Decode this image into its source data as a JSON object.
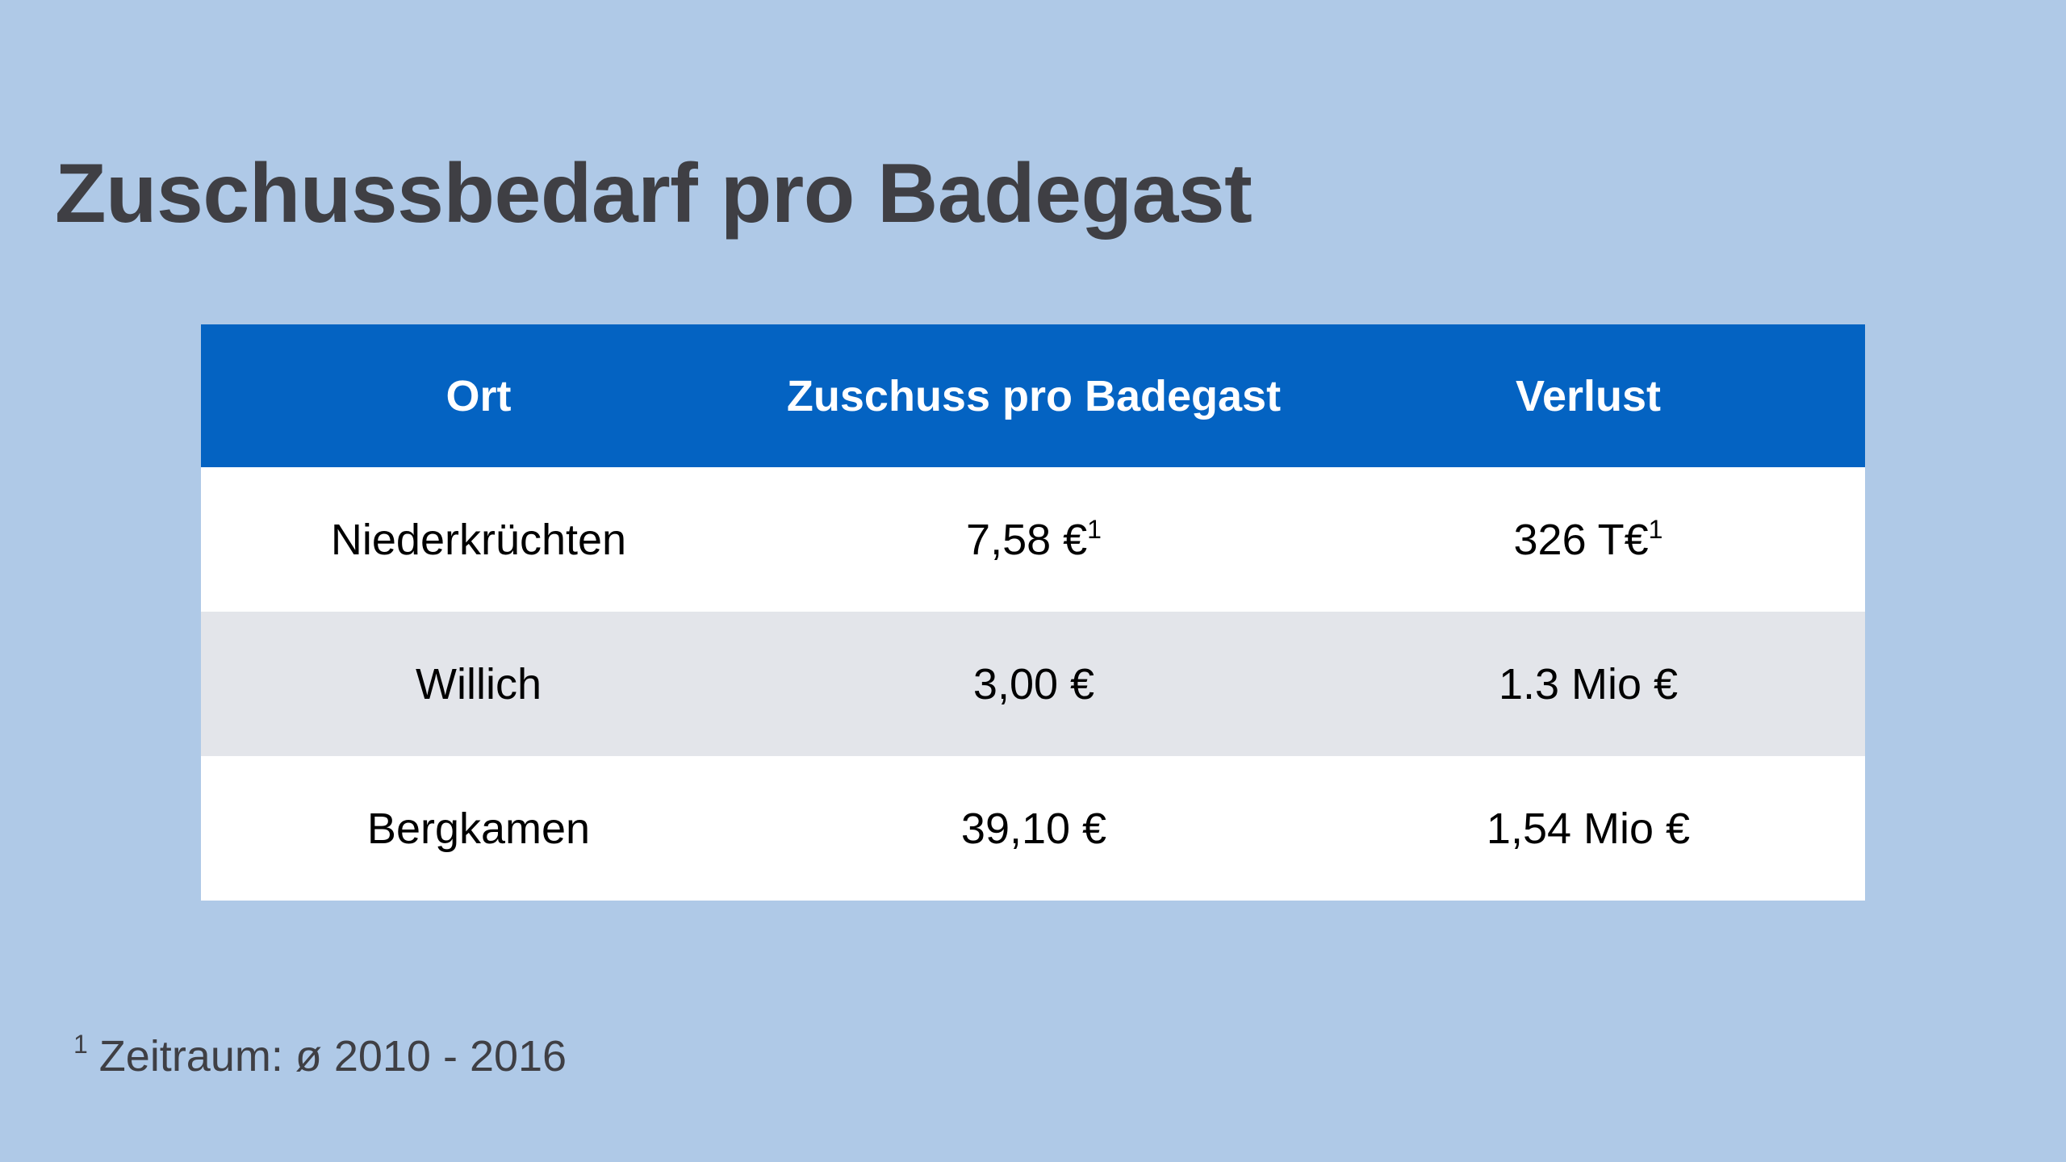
{
  "title": "Zuschussbedarf pro Badegast",
  "table": {
    "headers": [
      "Ort",
      "Zuschuss pro Badegast",
      "Verlust"
    ],
    "rows": [
      {
        "ort": "Niederkrüchten",
        "zuschuss": "7,58 €",
        "zuschuss_mark": "1",
        "verlust": "326 T€",
        "verlust_mark": "1"
      },
      {
        "ort": "Willich",
        "zuschuss": "3,00 €",
        "verlust": "1.3 Mio €"
      },
      {
        "ort": "Bergkamen",
        "zuschuss": "39,10 €",
        "verlust": "1,54 Mio €"
      }
    ]
  },
  "footnote": {
    "mark": "1",
    "text": "Zeitraum: ø 2010 - 2016"
  },
  "colors": {
    "background": "#afc9e7",
    "header_bg": "#0463c2",
    "row_alt_bg": "#e3e5ea",
    "title_text": "#3f3f44"
  }
}
